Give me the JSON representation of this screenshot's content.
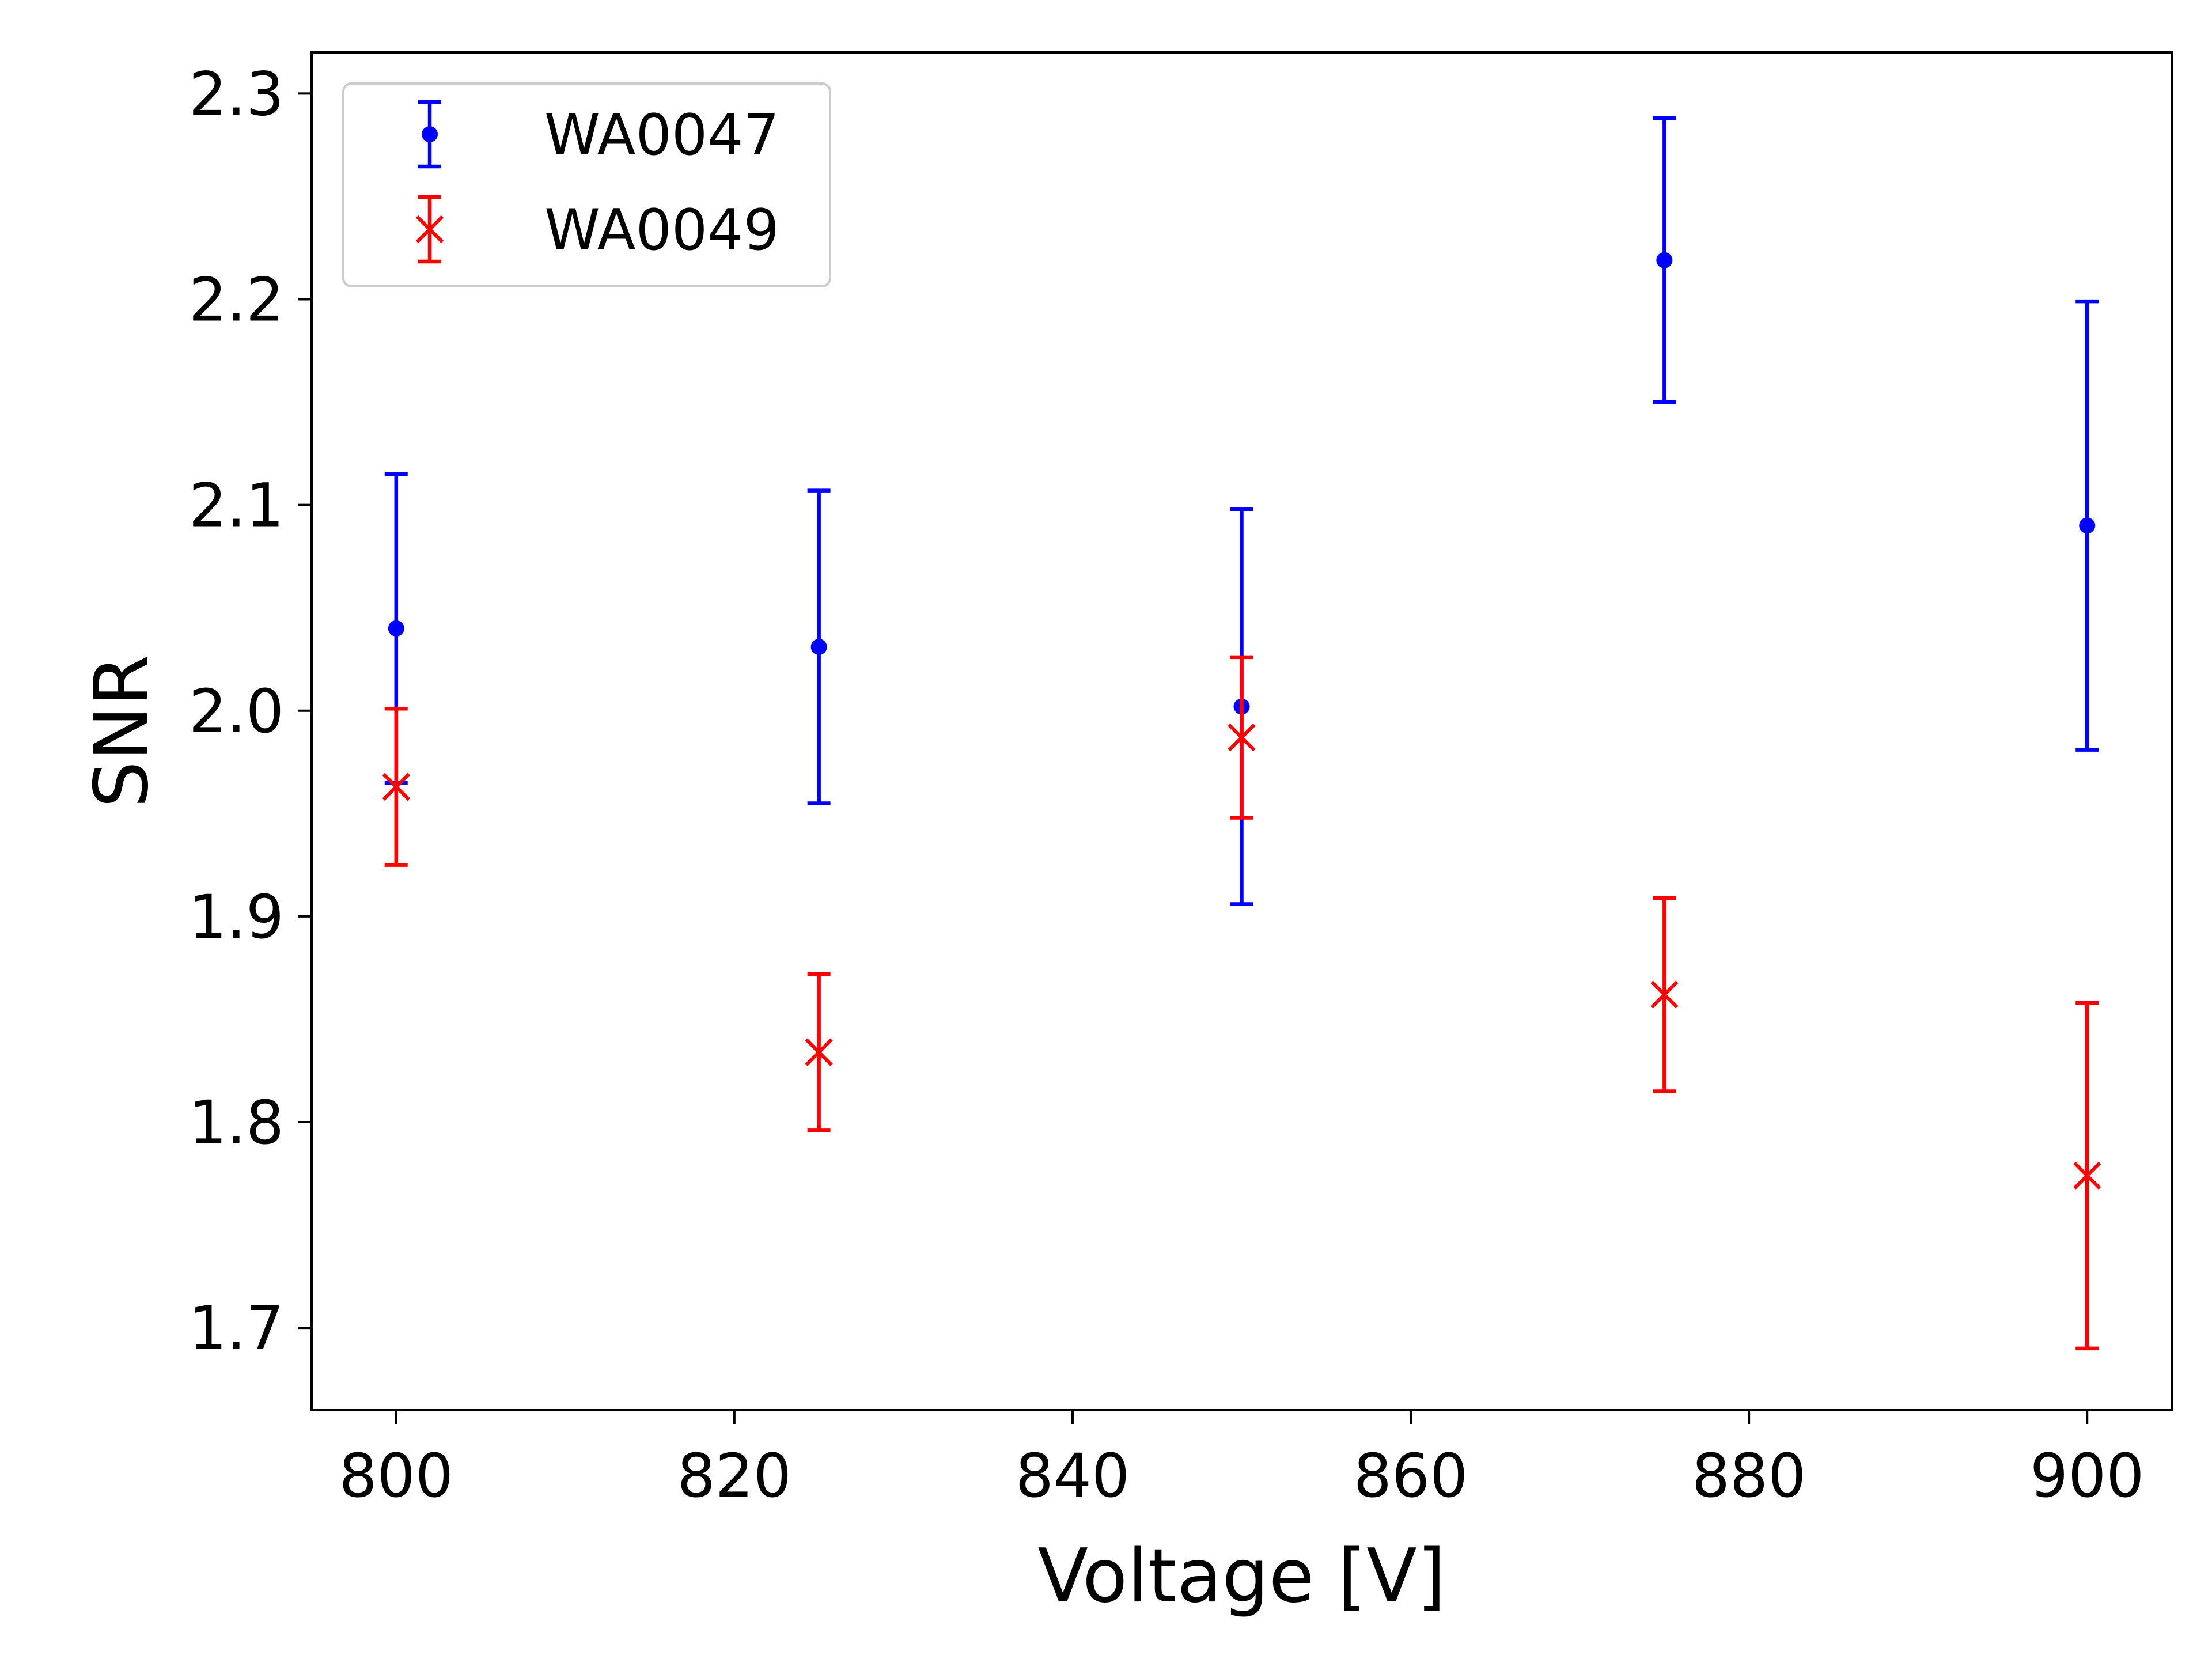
{
  "chart_data": {
    "type": "scatter",
    "title": "",
    "xlabel": "Voltage [V]",
    "ylabel": "SNR",
    "xlim": [
      795,
      905
    ],
    "ylim": [
      1.66,
      2.32
    ],
    "xticks": [
      800,
      820,
      840,
      860,
      880,
      900
    ],
    "yticks": [
      1.7,
      1.8,
      1.9,
      2.0,
      2.1,
      2.2,
      2.3
    ],
    "xtick_labels": [
      "800",
      "820",
      "840",
      "860",
      "880",
      "900"
    ],
    "ytick_labels": [
      "1.7",
      "1.8",
      "1.9",
      "2.0",
      "2.1",
      "2.2",
      "2.3"
    ],
    "grid": false,
    "legend_position": "top-left",
    "series": [
      {
        "name": "WA0047",
        "color": "#0000ff",
        "marker": "dot",
        "points": [
          {
            "x": 800,
            "y": 2.04,
            "yerr": 0.075
          },
          {
            "x": 825,
            "y": 2.031,
            "yerr": 0.076
          },
          {
            "x": 850,
            "y": 2.002,
            "yerr": 0.096
          },
          {
            "x": 875,
            "y": 2.219,
            "yerr": 0.069
          },
          {
            "x": 900,
            "y": 2.09,
            "yerr": 0.109
          }
        ]
      },
      {
        "name": "WA0049",
        "color": "#ff0000",
        "marker": "x",
        "points": [
          {
            "x": 800,
            "y": 1.963,
            "yerr": 0.038
          },
          {
            "x": 825,
            "y": 1.834,
            "yerr": 0.038
          },
          {
            "x": 850,
            "y": 1.987,
            "yerr": 0.039
          },
          {
            "x": 875,
            "y": 1.862,
            "yerr": 0.047
          },
          {
            "x": 900,
            "y": 1.774,
            "yerr": 0.084
          }
        ]
      }
    ]
  }
}
